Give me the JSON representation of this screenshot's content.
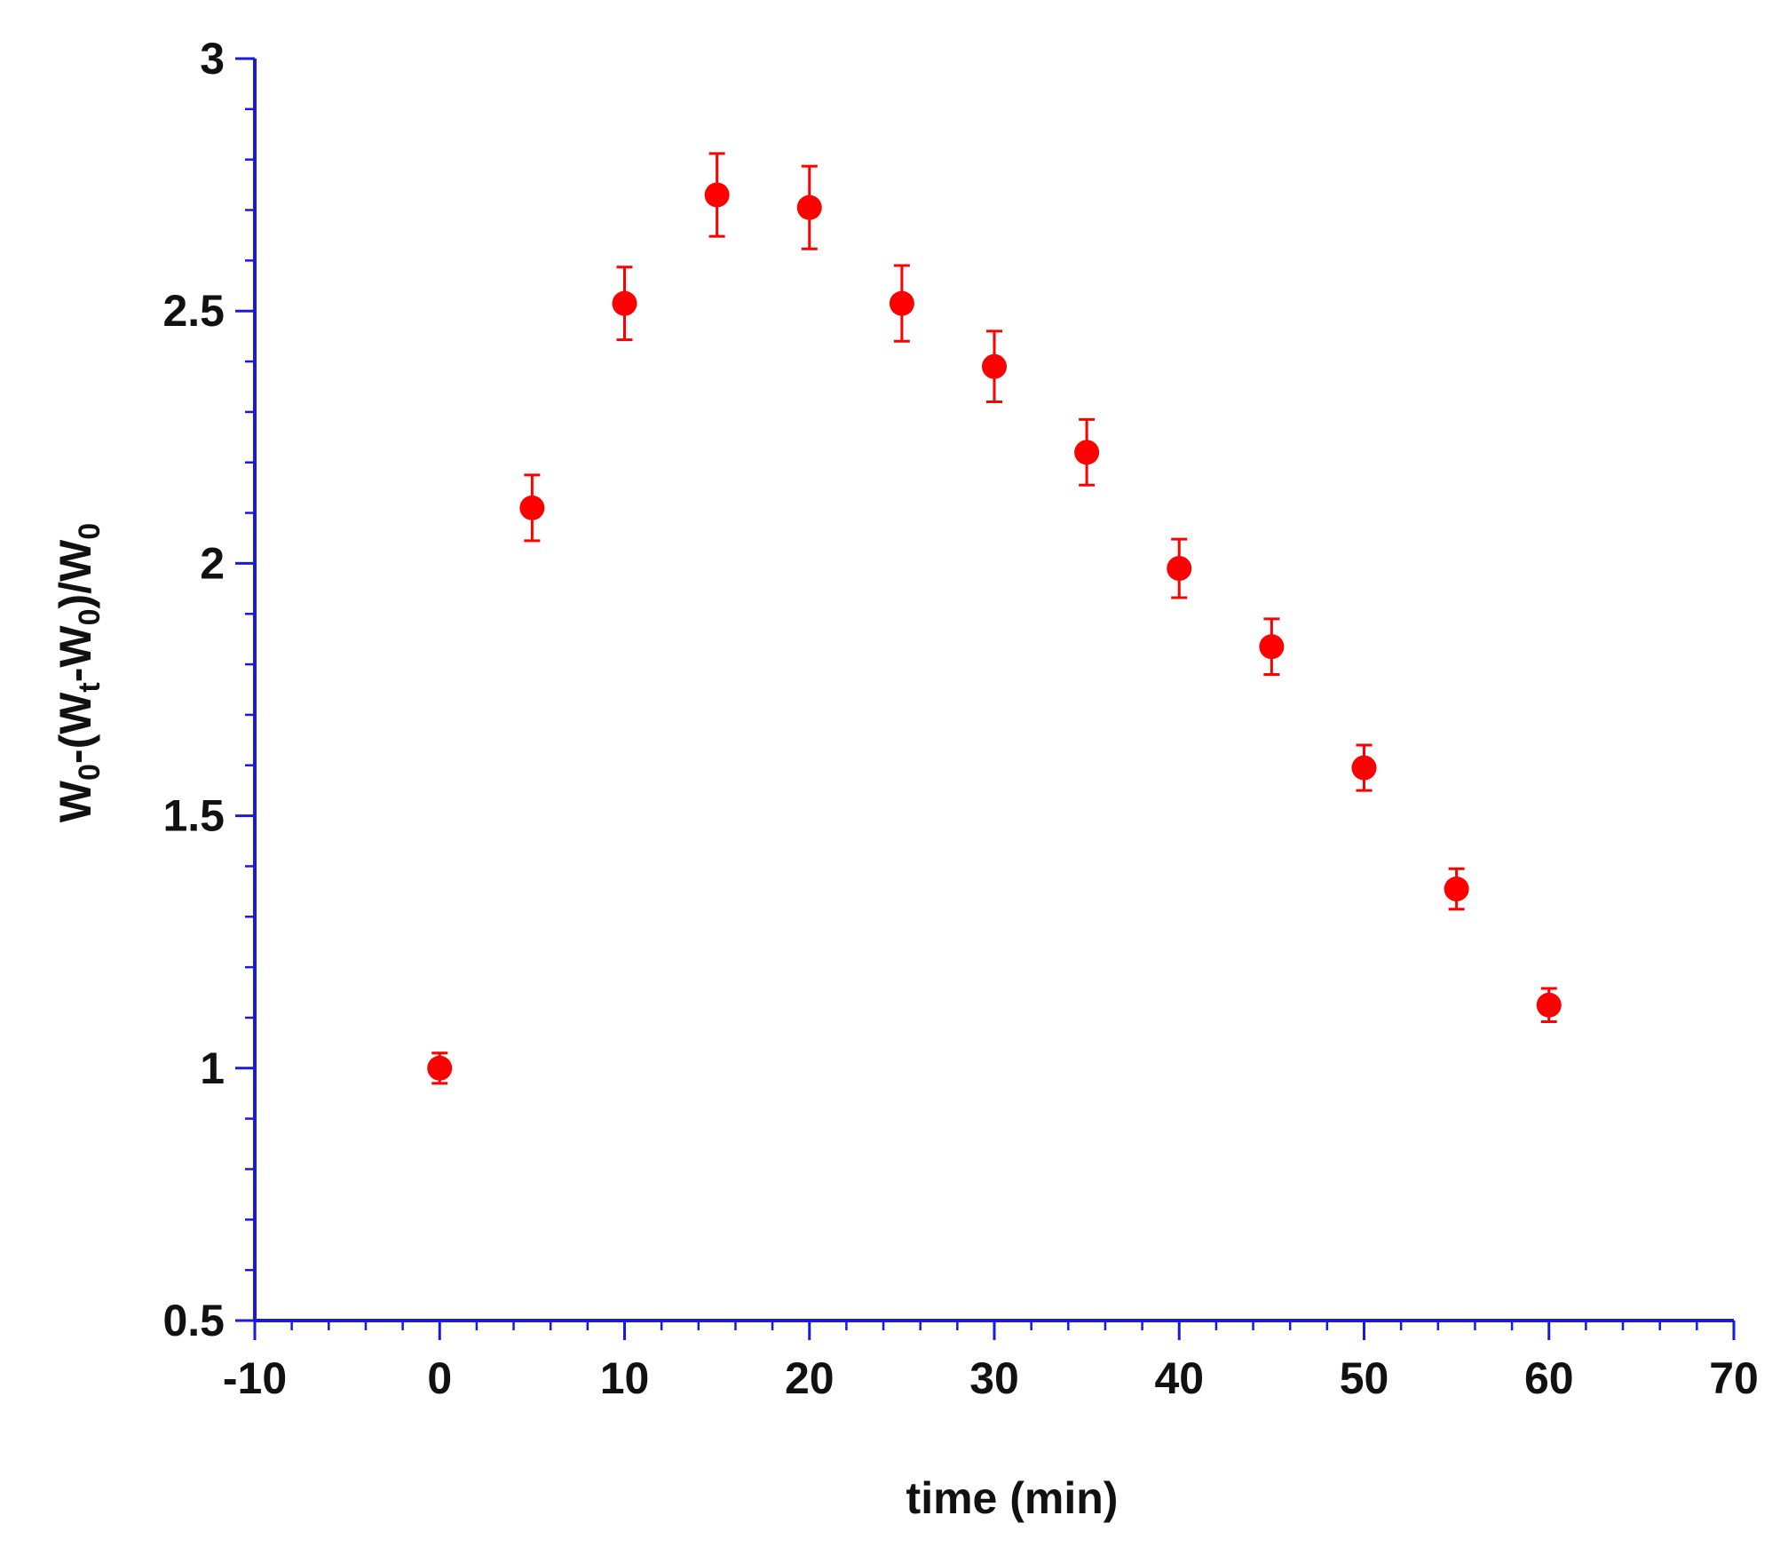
{
  "chart_data": {
    "type": "scatter",
    "title": "",
    "xlabel": "time (min)",
    "ylabel": {
      "parts": [
        {
          "text": "W",
          "sub": false
        },
        {
          "text": "0",
          "sub": true
        },
        {
          "text": "-(W",
          "sub": false
        },
        {
          "text": "t",
          "sub": true
        },
        {
          "text": "-W",
          "sub": false
        },
        {
          "text": "0",
          "sub": true
        },
        {
          "text": ")/W",
          "sub": false
        },
        {
          "text": "0",
          "sub": true
        }
      ]
    },
    "xlim": [
      -10,
      70
    ],
    "ylim": [
      0.5,
      3
    ],
    "x_ticks": [
      -10,
      0,
      10,
      20,
      30,
      40,
      50,
      60,
      70
    ],
    "y_ticks": [
      0.5,
      1,
      1.5,
      2,
      2.5,
      3
    ],
    "x_tick_labels": [
      "-10",
      "0",
      "10",
      "20",
      "30",
      "40",
      "50",
      "60",
      "70"
    ],
    "y_tick_labels": [
      "0.5",
      "1",
      "1.5",
      "2",
      "2.5",
      "3"
    ],
    "x_minor_step": 2,
    "y_minor_step": 0.1,
    "grid": false,
    "legend": "none",
    "axis_color": "#1a1adf",
    "series": [
      {
        "color": "#ff0000",
        "marker": "circle",
        "points": [
          {
            "x": 0,
            "y": 1.0,
            "err": 0.03
          },
          {
            "x": 5,
            "y": 2.11,
            "err": 0.065
          },
          {
            "x": 10,
            "y": 2.515,
            "err": 0.072
          },
          {
            "x": 15,
            "y": 2.73,
            "err": 0.082
          },
          {
            "x": 20,
            "y": 2.705,
            "err": 0.082
          },
          {
            "x": 25,
            "y": 2.515,
            "err": 0.075
          },
          {
            "x": 30,
            "y": 2.39,
            "err": 0.07
          },
          {
            "x": 35,
            "y": 2.22,
            "err": 0.065
          },
          {
            "x": 40,
            "y": 1.99,
            "err": 0.058
          },
          {
            "x": 45,
            "y": 1.835,
            "err": 0.055
          },
          {
            "x": 50,
            "y": 1.595,
            "err": 0.045
          },
          {
            "x": 55,
            "y": 1.355,
            "err": 0.04
          },
          {
            "x": 60,
            "y": 1.125,
            "err": 0.033
          }
        ]
      }
    ]
  }
}
